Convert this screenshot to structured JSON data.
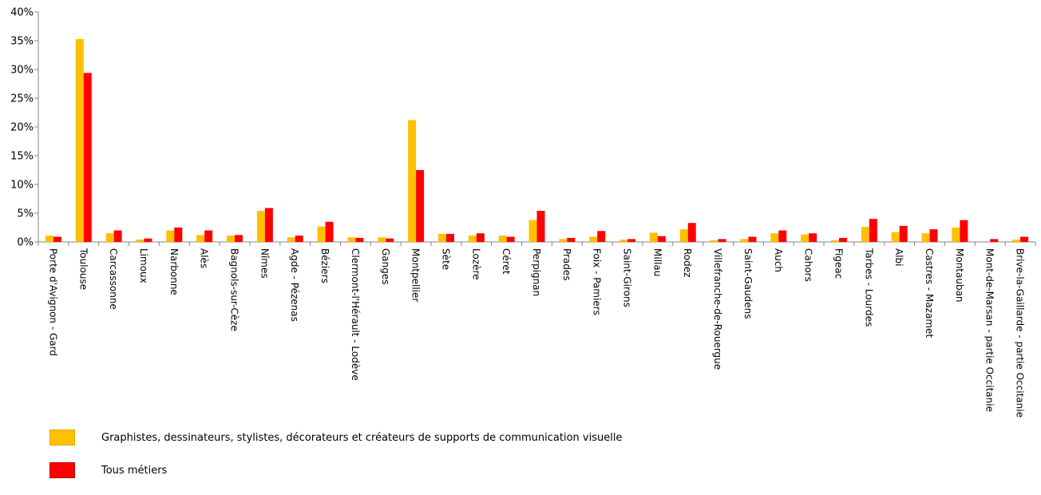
{
  "chart_data": {
    "type": "bar",
    "title": "",
    "xlabel": "",
    "ylabel": "",
    "ylim": [
      0,
      40
    ],
    "yticks": [
      "0%",
      "5%",
      "10%",
      "15%",
      "20%",
      "25%",
      "30%",
      "35%",
      "40%"
    ],
    "grid": false,
    "legend_position": "bottom-left",
    "categories": [
      "Porte d'Avignon - Gard",
      "Toulouse",
      "Carcassonne",
      "Limoux",
      "Narbonne",
      "Alès",
      "Bagnols-sur-Cèze",
      "Nîmes",
      "Agde - Pézenas",
      "Béziers",
      "Clermont-l'Hérault - Lodève",
      "Ganges",
      "Montpellier",
      "Sète",
      "Lozère",
      "Céret",
      "Perpignan",
      "Prades",
      "Foix - Pamiers",
      "Saint-Girons",
      "Millau",
      "Rodez",
      "Villefranche-de-Rouergue",
      "Saint-Gaudens",
      "Auch",
      "Cahors",
      "Figeac",
      "Tarbes - Lourdes",
      "Albi",
      "Castres - Mazamet",
      "Montauban",
      "Mont-de-Marsan - partie Occitanie",
      "Brive-la-Gaillarde - partie Occitanie"
    ],
    "series": [
      {
        "name": "Graphistes, dessinateurs, stylistes, décorateurs et créateurs de supports de communication visuelle",
        "color": "#FFC000",
        "values": [
          1.1,
          35.3,
          1.5,
          0.4,
          2.0,
          1.2,
          1.1,
          5.4,
          0.8,
          2.7,
          0.8,
          0.8,
          21.2,
          1.4,
          1.1,
          1.1,
          3.8,
          0.5,
          0.9,
          0.4,
          1.6,
          2.2,
          0.3,
          0.5,
          1.5,
          1.3,
          0.3,
          2.6,
          1.7,
          1.5,
          2.5,
          0.0,
          0.4
        ]
      },
      {
        "name": "Tous métiers",
        "color": "#FF0000",
        "values": [
          0.9,
          29.4,
          2.0,
          0.6,
          2.5,
          2.0,
          1.2,
          5.9,
          1.1,
          3.5,
          0.7,
          0.6,
          12.5,
          1.4,
          1.5,
          0.9,
          5.4,
          0.7,
          1.9,
          0.5,
          1.0,
          3.3,
          0.5,
          0.9,
          2.0,
          1.5,
          0.7,
          4.0,
          2.8,
          2.2,
          3.8,
          0.5,
          0.9
        ]
      }
    ]
  }
}
